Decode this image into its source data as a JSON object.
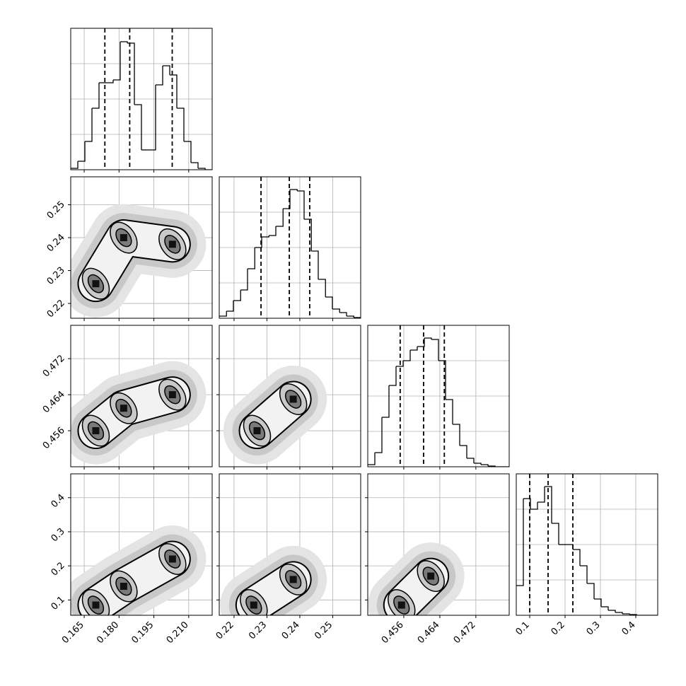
{
  "chart_data": [
    {
      "type": "histogram",
      "xlim": [
        0.1592,
        0.2201
      ],
      "ylim": [
        0,
        200
      ],
      "xticks": [
        0.165,
        {
          "value": 0.18,
          "label": "0.180"
        },
        0.195,
        {
          "value": 0.21,
          "label": "0.210"
        }
      ],
      "yticks": [
        50,
        100,
        150
      ],
      "bins": [
        0.1592,
        0.16225,
        0.16529,
        0.16834,
        0.17138,
        0.17443,
        0.17747,
        0.18052,
        0.18356,
        0.18661,
        0.18965,
        0.1927,
        0.19574,
        0.19879,
        0.20183,
        0.20488,
        0.20792,
        0.21097,
        0.21401,
        0.21706,
        0.2201
      ],
      "values": [
        2,
        12,
        40,
        87,
        123,
        123,
        127,
        181,
        179,
        92,
        28,
        28,
        120,
        147,
        134,
        87,
        40,
        10,
        2,
        0
      ],
      "quantiles": [
        0.1739,
        0.1846,
        0.2029
      ],
      "color": "#000000",
      "grid": true
    },
    {
      "type": "density",
      "xlim": [
        0.1592,
        0.2201
      ],
      "ylim": [
        0.2155,
        0.2585
      ],
      "xticks": [
        0.165,
        {
          "value": 0.18,
          "label": "0.180"
        },
        0.195,
        {
          "value": 0.21,
          "label": "0.210"
        }
      ],
      "yticks": [
        0.22,
        0.23,
        0.24,
        0.25
      ],
      "x": [
        0.17,
        0.182,
        0.203
      ],
      "y": [
        0.226,
        0.24,
        0.238
      ],
      "grid": true
    },
    {
      "type": "histogram",
      "xlim": [
        0.2155,
        0.2585
      ],
      "ylim": [
        0,
        200
      ],
      "xticks": [
        0.22,
        0.23,
        0.24,
        0.25
      ],
      "yticks": [
        50,
        100,
        150
      ],
      "bins": [
        0.2155,
        0.2177,
        0.2198,
        0.222,
        0.2241,
        0.2263,
        0.2284,
        0.2306,
        0.2327,
        0.2349,
        0.237,
        0.2392,
        0.2413,
        0.2435,
        0.2456,
        0.2478,
        0.2499,
        0.2521,
        0.2542,
        0.2564,
        0.2585
      ],
      "values": [
        3,
        10,
        25,
        40,
        70,
        100,
        115,
        117,
        130,
        155,
        182,
        180,
        140,
        95,
        55,
        30,
        13,
        8,
        3,
        1
      ],
      "quantiles": [
        0.2282,
        0.2368,
        0.243
      ],
      "color": "#000000",
      "grid": true
    },
    {
      "type": "density",
      "xlim": [
        0.1592,
        0.2201
      ],
      "ylim": [
        0.448,
        0.4794
      ],
      "xticks": [
        0.165,
        {
          "value": 0.18,
          "label": "0.180"
        },
        0.195,
        {
          "value": 0.21,
          "label": "0.210"
        }
      ],
      "yticks": [
        0.456,
        0.464,
        0.472
      ],
      "x": [
        0.17,
        0.182,
        0.203
      ],
      "y": [
        0.456,
        0.461,
        0.464
      ],
      "grid": true
    },
    {
      "type": "density",
      "xlim": [
        0.2155,
        0.2585
      ],
      "ylim": [
        0.448,
        0.4794
      ],
      "xticks": [
        0.22,
        0.23,
        0.24,
        0.25
      ],
      "yticks": [
        0.456,
        0.464,
        0.472
      ],
      "x": [
        0.227,
        0.238
      ],
      "y": [
        0.456,
        0.463
      ],
      "grid": true
    },
    {
      "type": "histogram",
      "xlim": [
        0.448,
        0.4794
      ],
      "ylim": [
        0,
        200
      ],
      "xticks": [
        0.456,
        0.464,
        0.472
      ],
      "yticks": [
        50,
        100,
        150
      ],
      "bins": [
        0.448,
        0.44957,
        0.45114,
        0.45271,
        0.45428,
        0.45585,
        0.45742,
        0.45899,
        0.46056,
        0.46213,
        0.4637,
        0.46527,
        0.46684,
        0.46841,
        0.46998,
        0.47155,
        0.47312,
        0.47469,
        0.47626,
        0.47783,
        0.4794
      ],
      "values": [
        3,
        20,
        70,
        115,
        142,
        150,
        165,
        170,
        182,
        180,
        150,
        95,
        60,
        30,
        12,
        5,
        3,
        1,
        0,
        0
      ],
      "quantiles": [
        0.4552,
        0.4604,
        0.465
      ],
      "color": "#000000",
      "grid": true
    },
    {
      "type": "density",
      "xlim": [
        0.1592,
        0.2201
      ],
      "ylim": [
        0.055,
        0.47
      ],
      "xticks": [
        0.165,
        {
          "value": 0.18,
          "label": "0.180"
        },
        0.195,
        {
          "value": 0.21,
          "label": "0.210"
        }
      ],
      "yticks": [
        0.1,
        0.2,
        0.3,
        0.4
      ],
      "x": [
        0.17,
        0.182,
        0.203
      ],
      "y": [
        0.085,
        0.14,
        0.22
      ],
      "grid": true
    },
    {
      "type": "density",
      "xlim": [
        0.2155,
        0.2585
      ],
      "ylim": [
        0.055,
        0.47
      ],
      "xticks": [
        0.22,
        0.23,
        0.24,
        0.25
      ],
      "yticks": [
        0.1,
        0.2,
        0.3,
        0.4
      ],
      "x": [
        0.226,
        0.238
      ],
      "y": [
        0.085,
        0.16
      ],
      "grid": true
    },
    {
      "type": "density",
      "xlim": [
        0.448,
        0.4794
      ],
      "ylim": [
        0.055,
        0.47
      ],
      "xticks": [
        0.456,
        0.464,
        0.472
      ],
      "yticks": [
        0.1,
        0.2,
        0.3,
        0.4
      ],
      "x": [
        0.4555,
        0.462
      ],
      "y": [
        0.085,
        0.17
      ],
      "grid": true
    },
    {
      "type": "histogram",
      "xlim": [
        0.062,
        0.462
      ],
      "ylim": [
        0,
        200
      ],
      "xticks": [
        0.1,
        0.2,
        0.3,
        0.4
      ],
      "yticks": [
        50,
        100,
        150
      ],
      "bins": [
        0.062,
        0.082,
        0.102,
        0.122,
        0.142,
        0.162,
        0.182,
        0.202,
        0.222,
        0.242,
        0.262,
        0.282,
        0.302,
        0.322,
        0.342,
        0.362,
        0.382,
        0.402,
        0.422,
        0.442,
        0.462
      ],
      "values": [
        42,
        165,
        150,
        160,
        182,
        130,
        100,
        100,
        93,
        70,
        45,
        23,
        12,
        7,
        4,
        2,
        1,
        0,
        0,
        0
      ],
      "quantiles": [
        0.1,
        0.152,
        0.222
      ],
      "color": "#000000",
      "grid": true
    }
  ]
}
